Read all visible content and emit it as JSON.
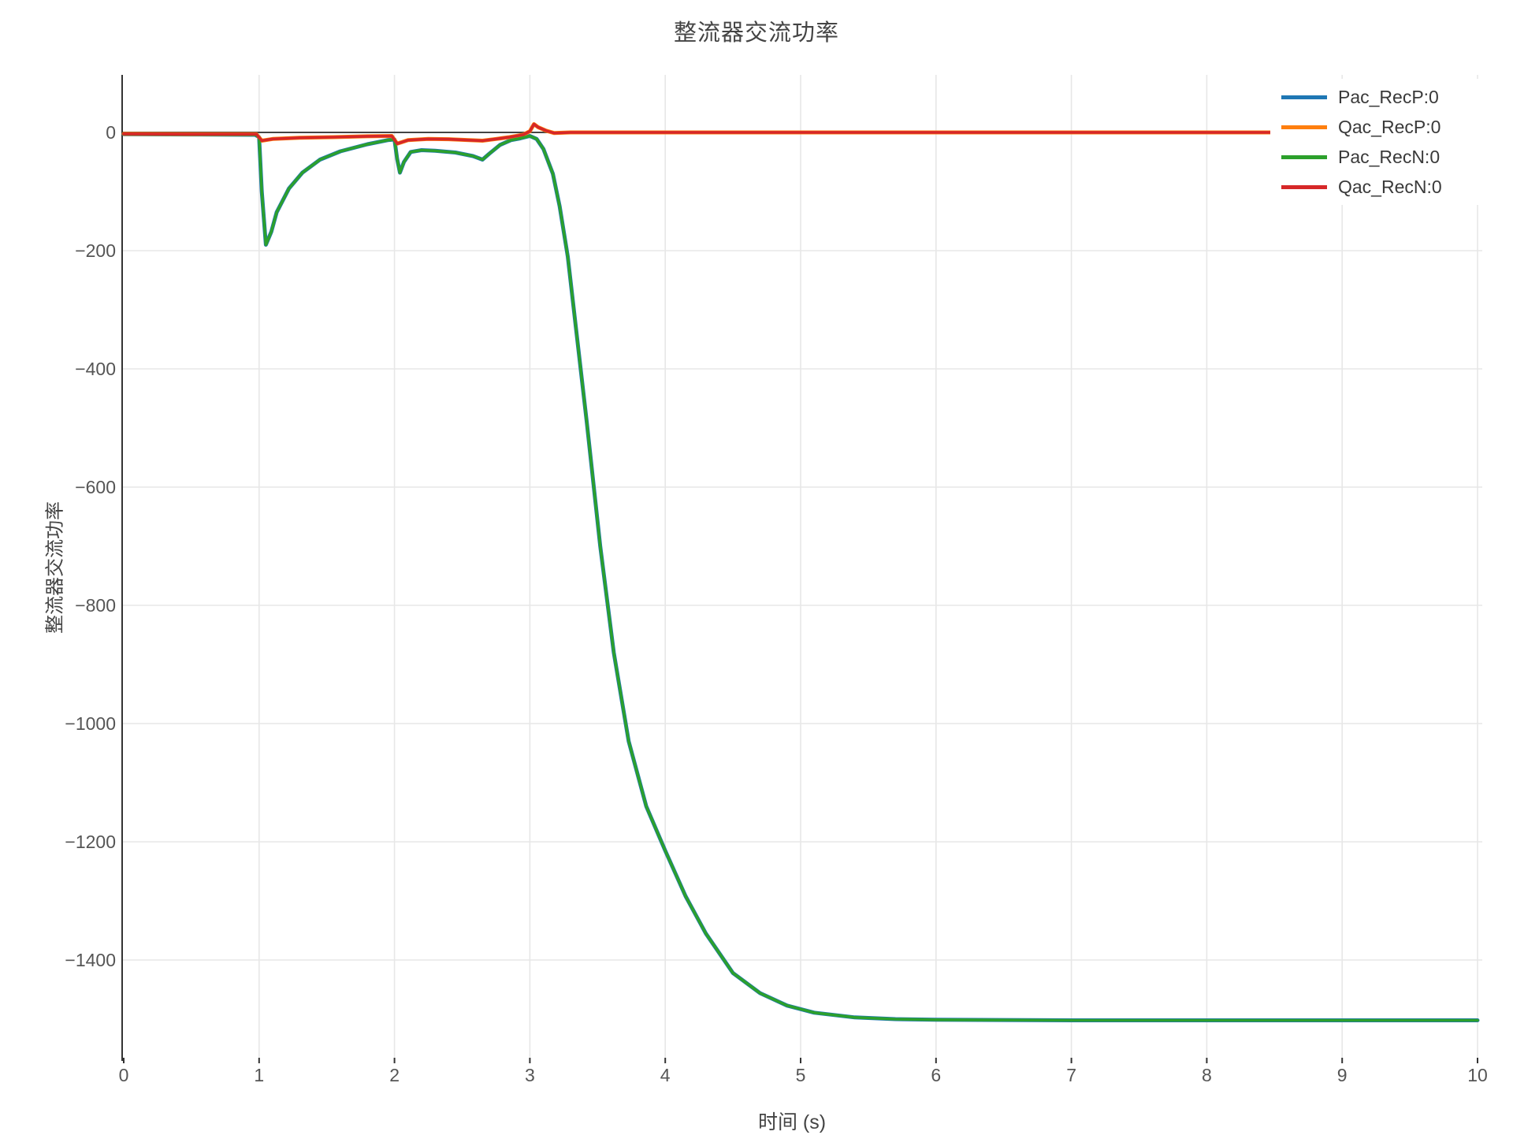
{
  "page": {
    "background": "#ffffff"
  },
  "chart_data": {
    "type": "line",
    "title": "整流器交流功率",
    "xlabel": "时间 (s)",
    "ylabel": "整流器交流功率",
    "xlim": [
      0,
      10.05
    ],
    "ylim": [
      -1570,
      100
    ],
    "x_ticks": [
      0,
      1,
      2,
      3,
      4,
      5,
      6,
      7,
      8,
      9,
      10
    ],
    "y_ticks": [
      0,
      -200,
      -400,
      -600,
      -800,
      -1000,
      -1200,
      -1400
    ],
    "grid": true,
    "zeroline": true,
    "legend_position": "top-right",
    "colors": {
      "grid": "#e7e7e7",
      "zeroline": "#444444",
      "axis": "#333333",
      "tick_label": "#555555",
      "title": "#444444"
    },
    "series": [
      {
        "name": "Pac_RecP:0",
        "color": "#1f77b4",
        "points": [
          [
            0,
            -3
          ],
          [
            0.5,
            -3.5
          ],
          [
            0.97,
            -4
          ],
          [
            1.0,
            -8
          ],
          [
            1.02,
            -100
          ],
          [
            1.05,
            -190
          ],
          [
            1.09,
            -168
          ],
          [
            1.13,
            -135
          ],
          [
            1.22,
            -95
          ],
          [
            1.32,
            -68
          ],
          [
            1.45,
            -46
          ],
          [
            1.6,
            -32
          ],
          [
            1.8,
            -20
          ],
          [
            1.95,
            -13
          ],
          [
            2.0,
            -12
          ],
          [
            2.02,
            -45
          ],
          [
            2.04,
            -68
          ],
          [
            2.07,
            -50
          ],
          [
            2.12,
            -33
          ],
          [
            2.2,
            -30
          ],
          [
            2.3,
            -31
          ],
          [
            2.45,
            -34
          ],
          [
            2.58,
            -40
          ],
          [
            2.65,
            -46
          ],
          [
            2.7,
            -36
          ],
          [
            2.78,
            -21
          ],
          [
            2.86,
            -13
          ],
          [
            2.93,
            -10
          ],
          [
            3.0,
            -6
          ],
          [
            3.05,
            -11
          ],
          [
            3.1,
            -28
          ],
          [
            3.17,
            -70
          ],
          [
            3.22,
            -125
          ],
          [
            3.28,
            -210
          ],
          [
            3.34,
            -330
          ],
          [
            3.42,
            -490
          ],
          [
            3.52,
            -700
          ],
          [
            3.62,
            -880
          ],
          [
            3.73,
            -1030
          ],
          [
            3.86,
            -1140
          ],
          [
            4.0,
            -1215
          ],
          [
            4.15,
            -1292
          ],
          [
            4.3,
            -1355
          ],
          [
            4.5,
            -1422
          ],
          [
            4.7,
            -1456
          ],
          [
            4.9,
            -1477
          ],
          [
            5.1,
            -1489
          ],
          [
            5.4,
            -1497
          ],
          [
            5.7,
            -1500
          ],
          [
            6.0,
            -1501
          ],
          [
            7.0,
            -1502
          ],
          [
            8.0,
            -1502
          ],
          [
            9.0,
            -1502
          ],
          [
            10.0,
            -1502
          ]
        ]
      },
      {
        "name": "Qac_RecP:0",
        "color": "#ff7f0e",
        "points": [
          [
            0,
            -2.5
          ],
          [
            0.5,
            -3
          ],
          [
            0.98,
            -3
          ],
          [
            1.02,
            -14
          ],
          [
            1.1,
            -11
          ],
          [
            1.3,
            -9
          ],
          [
            1.55,
            -8
          ],
          [
            1.8,
            -6.5
          ],
          [
            1.98,
            -6
          ],
          [
            2.02,
            -19
          ],
          [
            2.1,
            -13
          ],
          [
            2.25,
            -11
          ],
          [
            2.4,
            -11.5
          ],
          [
            2.55,
            -13
          ],
          [
            2.65,
            -14
          ],
          [
            2.75,
            -11
          ],
          [
            2.85,
            -8
          ],
          [
            2.95,
            -4
          ],
          [
            3.0,
            2
          ],
          [
            3.03,
            14
          ],
          [
            3.06,
            9
          ],
          [
            3.12,
            3
          ],
          [
            3.18,
            -1
          ],
          [
            3.3,
            0
          ],
          [
            4.0,
            0
          ],
          [
            5.0,
            0
          ],
          [
            6.0,
            0
          ],
          [
            7.0,
            0
          ],
          [
            8.0,
            0
          ],
          [
            9.0,
            0
          ],
          [
            10.0,
            0
          ]
        ]
      },
      {
        "name": "Pac_RecN:0",
        "color": "#2ca02c",
        "points": [
          [
            0,
            -3
          ],
          [
            0.5,
            -3.5
          ],
          [
            0.97,
            -4
          ],
          [
            1.0,
            -8
          ],
          [
            1.02,
            -100
          ],
          [
            1.05,
            -190
          ],
          [
            1.09,
            -168
          ],
          [
            1.13,
            -135
          ],
          [
            1.22,
            -95
          ],
          [
            1.32,
            -68
          ],
          [
            1.45,
            -46
          ],
          [
            1.6,
            -32
          ],
          [
            1.8,
            -20
          ],
          [
            1.95,
            -13
          ],
          [
            2.0,
            -12
          ],
          [
            2.02,
            -45
          ],
          [
            2.04,
            -68
          ],
          [
            2.07,
            -50
          ],
          [
            2.12,
            -33
          ],
          [
            2.2,
            -30
          ],
          [
            2.3,
            -31
          ],
          [
            2.45,
            -34
          ],
          [
            2.58,
            -40
          ],
          [
            2.65,
            -46
          ],
          [
            2.7,
            -36
          ],
          [
            2.78,
            -21
          ],
          [
            2.86,
            -13
          ],
          [
            2.93,
            -10
          ],
          [
            3.0,
            -6
          ],
          [
            3.05,
            -11
          ],
          [
            3.1,
            -28
          ],
          [
            3.17,
            -70
          ],
          [
            3.22,
            -125
          ],
          [
            3.28,
            -210
          ],
          [
            3.34,
            -330
          ],
          [
            3.42,
            -490
          ],
          [
            3.52,
            -700
          ],
          [
            3.62,
            -880
          ],
          [
            3.73,
            -1030
          ],
          [
            3.86,
            -1140
          ],
          [
            4.0,
            -1215
          ],
          [
            4.15,
            -1292
          ],
          [
            4.3,
            -1355
          ],
          [
            4.5,
            -1422
          ],
          [
            4.7,
            -1456
          ],
          [
            4.9,
            -1477
          ],
          [
            5.1,
            -1489
          ],
          [
            5.4,
            -1497
          ],
          [
            5.7,
            -1500
          ],
          [
            6.0,
            -1501
          ],
          [
            7.0,
            -1502
          ],
          [
            8.0,
            -1502
          ],
          [
            9.0,
            -1502
          ],
          [
            10.0,
            -1502
          ]
        ]
      },
      {
        "name": "Qac_RecN:0",
        "color": "#d62728",
        "points": [
          [
            0,
            -2.5
          ],
          [
            0.5,
            -3
          ],
          [
            0.98,
            -3
          ],
          [
            1.02,
            -14
          ],
          [
            1.1,
            -11
          ],
          [
            1.3,
            -9
          ],
          [
            1.55,
            -8
          ],
          [
            1.8,
            -6.5
          ],
          [
            1.98,
            -6
          ],
          [
            2.02,
            -19
          ],
          [
            2.1,
            -13
          ],
          [
            2.25,
            -11
          ],
          [
            2.4,
            -11.5
          ],
          [
            2.55,
            -13
          ],
          [
            2.65,
            -14
          ],
          [
            2.75,
            -11
          ],
          [
            2.85,
            -8
          ],
          [
            2.95,
            -4
          ],
          [
            3.0,
            2
          ],
          [
            3.03,
            14
          ],
          [
            3.06,
            9
          ],
          [
            3.12,
            3
          ],
          [
            3.18,
            -1
          ],
          [
            3.3,
            0
          ],
          [
            4.0,
            0
          ],
          [
            5.0,
            0
          ],
          [
            6.0,
            0
          ],
          [
            7.0,
            0
          ],
          [
            8.0,
            0
          ],
          [
            9.0,
            0
          ],
          [
            10.0,
            0
          ]
        ]
      }
    ]
  }
}
